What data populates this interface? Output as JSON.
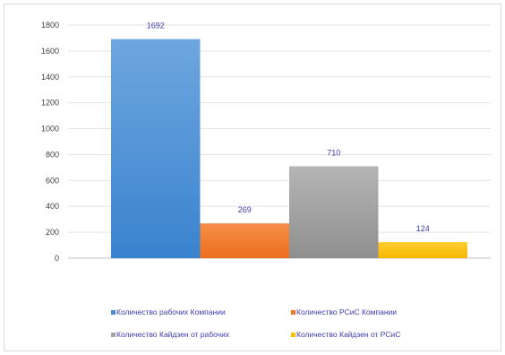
{
  "chart_data": {
    "type": "bar",
    "ylim": [
      0,
      1800
    ],
    "yticks": [
      0,
      200,
      400,
      600,
      800,
      1000,
      1200,
      1400,
      1600,
      1800
    ],
    "grid": true,
    "legend_position": "bottom",
    "series": [
      {
        "name": "Количество рабочих Компании",
        "value": 1692,
        "color": "#4a8fd6"
      },
      {
        "name": "Количество РСиС Компании",
        "value": 269,
        "color": "#f0782a"
      },
      {
        "name": "Количество Кайдзен от рабочих",
        "value": 710,
        "color": "#a3a3a3"
      },
      {
        "name": "Количество Кайдзен от РСиС",
        "value": 124,
        "color": "#ffc000"
      }
    ]
  }
}
